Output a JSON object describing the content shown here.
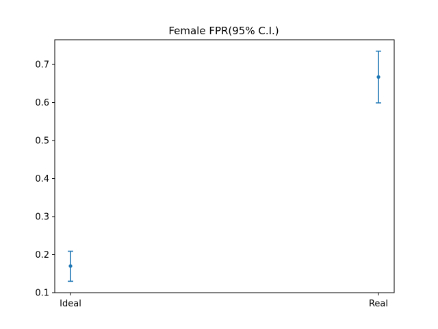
{
  "chart_data": {
    "type": "scatter",
    "title": "Female FPR(95% C.I.)",
    "xlabel": "",
    "ylabel": "",
    "categories": [
      "Ideal",
      "Real"
    ],
    "series": [
      {
        "values": [
          0.17,
          0.667
        ],
        "ci_low": [
          0.13,
          0.599
        ],
        "ci_high": [
          0.209,
          0.735
        ]
      }
    ],
    "ylim": [
      0.1,
      0.765
    ],
    "yticks": [
      0.1,
      0.2,
      0.3,
      0.4,
      0.5,
      0.6,
      0.7
    ],
    "ytick_labels": [
      "0.1",
      "0.2",
      "0.3",
      "0.4",
      "0.5",
      "0.6",
      "0.7"
    ],
    "grid": false,
    "color": "#1f77b4"
  }
}
